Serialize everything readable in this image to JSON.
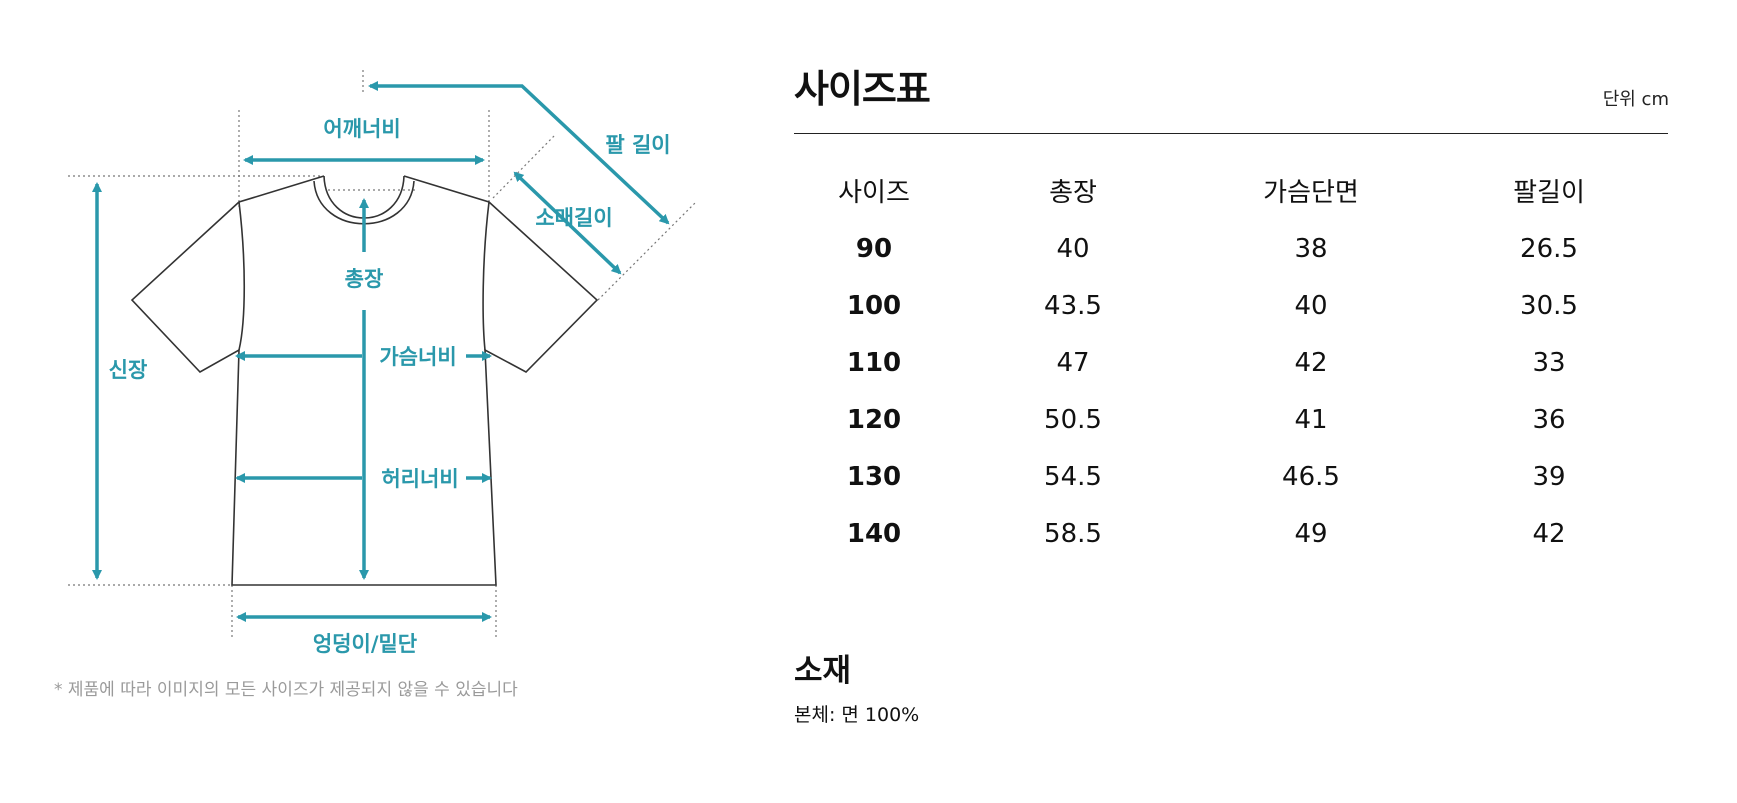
{
  "diagram": {
    "labels": {
      "shoulder": "어깨너비",
      "sleeve_arm": "팔 길이",
      "sleeve": "소매길이",
      "length": "총장",
      "height": "신장",
      "chest": "가슴너비",
      "waist": "허리너비",
      "hip": "엉덩이/밑단"
    },
    "accent": "#2a98ab",
    "note": "* 제품에 따라 이미지의 모든 사이즈가 제공되지 않을 수 있습니다"
  },
  "size_table": {
    "title": "사이즈표",
    "unit": "단위 cm",
    "headers": [
      "사이즈",
      "총장",
      "가슴단면",
      "팔길이"
    ],
    "rows": [
      [
        "90",
        "40",
        "38",
        "26.5"
      ],
      [
        "100",
        "43.5",
        "40",
        "30.5"
      ],
      [
        "110",
        "47",
        "42",
        "33"
      ],
      [
        "120",
        "50.5",
        "41",
        "36"
      ],
      [
        "130",
        "54.5",
        "46.5",
        "39"
      ],
      [
        "140",
        "58.5",
        "49",
        "42"
      ]
    ]
  },
  "material": {
    "title": "소재",
    "body": "본체: 면 100%"
  }
}
